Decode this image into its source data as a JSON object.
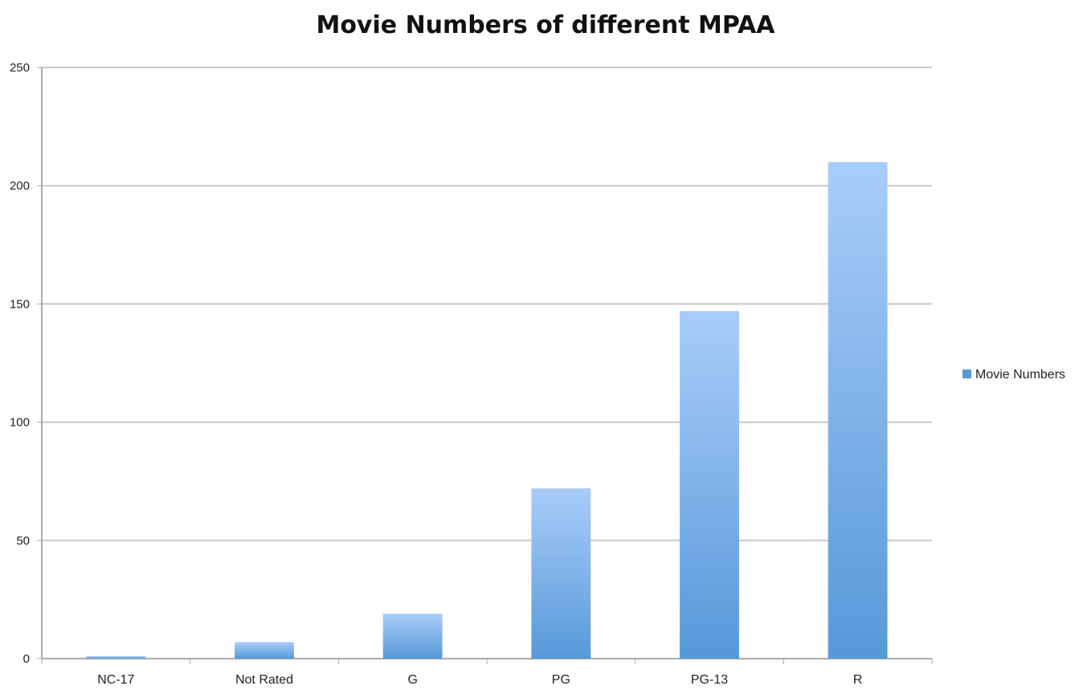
{
  "chart_data": {
    "type": "bar",
    "title": "Movie Numbers of different MPAA",
    "xlabel": "",
    "ylabel": "",
    "categories": [
      "NC-17",
      "Not Rated",
      "G",
      "PG",
      "PG-13",
      "R"
    ],
    "series": [
      {
        "name": "Movie Numbers",
        "values": [
          1,
          7,
          19,
          72,
          147,
          210
        ],
        "color_top": "#a9cdfa",
        "color_bottom": "#5699d8"
      }
    ],
    "ylim": [
      0,
      250
    ],
    "yticks": [
      "0",
      "50",
      "100",
      "150",
      "200",
      "250"
    ],
    "ytick_values": [
      0,
      50,
      100,
      150,
      200,
      250
    ],
    "grid": true,
    "legend_position": "right",
    "colors": {
      "grid": "#c8c8c8",
      "axis": "#aaaaaa",
      "text": "#222222"
    }
  }
}
